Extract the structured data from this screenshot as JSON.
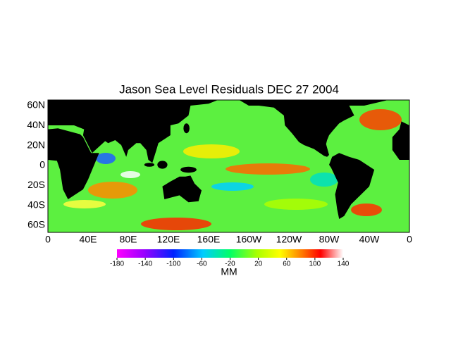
{
  "title": "Jason Sea Level Residuals  DEC 27 2004",
  "map": {
    "lat_ticks": [
      "60N",
      "40N",
      "20N",
      "0",
      "20S",
      "40S",
      "60S"
    ],
    "lon_ticks": [
      "0",
      "40E",
      "80E",
      "120E",
      "160E",
      "160W",
      "120W",
      "80W",
      "40W",
      "0"
    ]
  },
  "colorbar": {
    "ticks": [
      -180,
      -140,
      -100,
      -60,
      -20,
      20,
      60,
      100,
      140
    ],
    "unit": "MM"
  }
}
